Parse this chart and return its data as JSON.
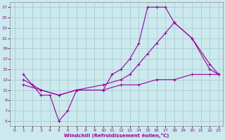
{
  "xlabel": "Windchill (Refroidissement éolien,°C)",
  "bg_color": "#cce9ee",
  "grid_color": "#aaccd4",
  "line_color": "#990099",
  "xlim": [
    -0.5,
    23.5
  ],
  "ylim": [
    4,
    28
  ],
  "xticks": [
    0,
    1,
    2,
    3,
    4,
    5,
    6,
    7,
    8,
    9,
    10,
    11,
    12,
    13,
    14,
    15,
    16,
    17,
    18,
    19,
    20,
    21,
    22,
    23
  ],
  "yticks": [
    5,
    7,
    9,
    11,
    13,
    15,
    17,
    19,
    21,
    23,
    25,
    27
  ],
  "line1_x": [
    1,
    2,
    3,
    4,
    5,
    6,
    7,
    10,
    11,
    12,
    13,
    14,
    15,
    16,
    17,
    18,
    20,
    22,
    23
  ],
  "line1_y": [
    14,
    12,
    10,
    10,
    5,
    7,
    11,
    11,
    14,
    15,
    17,
    20,
    27,
    27,
    27,
    24,
    21,
    15,
    14
  ],
  "line2_x": [
    1,
    3,
    5,
    7,
    10,
    12,
    13,
    14,
    15,
    16,
    17,
    18,
    20,
    22,
    23
  ],
  "line2_y": [
    13,
    11,
    10,
    11,
    12,
    13,
    14,
    16,
    18,
    20,
    22,
    24,
    21,
    16,
    14
  ],
  "line3_x": [
    1,
    3,
    5,
    7,
    10,
    12,
    14,
    16,
    18,
    20,
    22,
    23
  ],
  "line3_y": [
    12,
    11,
    10,
    11,
    11,
    12,
    12,
    13,
    13,
    14,
    14,
    14
  ]
}
